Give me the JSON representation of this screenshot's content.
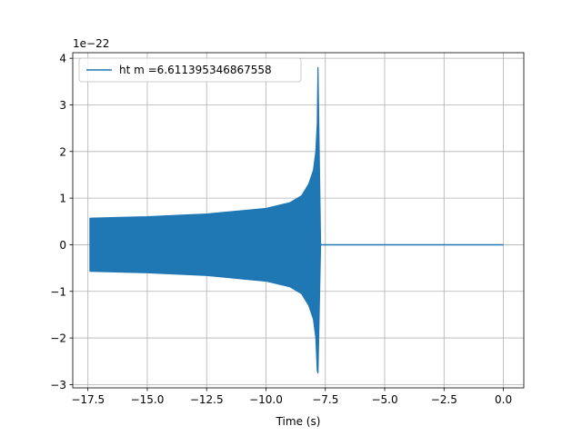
{
  "chart_data": {
    "type": "line",
    "xlabel": "Time (s)",
    "ylabel": "",
    "y_offset_text": "1e−22",
    "xlim": [
      -18.14,
      0.86
    ],
    "ylim": [
      -3.07,
      4.12
    ],
    "x_ticks": [
      -17.5,
      -15.0,
      -12.5,
      -10.0,
      -7.5,
      -5.0,
      -2.5,
      0.0
    ],
    "x_tick_labels": [
      "−17.5",
      "−15.0",
      "−12.5",
      "−10.0",
      "−7.5",
      "−5.0",
      "−2.5",
      "0.0"
    ],
    "y_ticks": [
      -3,
      -2,
      -1,
      0,
      1,
      2,
      3,
      4
    ],
    "y_tick_labels": [
      "−3",
      "−2",
      "−1",
      "0",
      "1",
      "2",
      "3",
      "4"
    ],
    "grid": true,
    "legend_position": "top-left",
    "series": [
      {
        "name": "ht m =6.611395346867558",
        "color": "#1f77b4",
        "envelope_upper": [
          [
            -17.41,
            0.57
          ],
          [
            -15.0,
            0.6
          ],
          [
            -12.5,
            0.66
          ],
          [
            -10.0,
            0.78
          ],
          [
            -9.0,
            0.9
          ],
          [
            -8.5,
            1.05
          ],
          [
            -8.2,
            1.3
          ],
          [
            -8.0,
            1.6
          ],
          [
            -7.9,
            2.0
          ],
          [
            -7.84,
            2.6
          ],
          [
            -7.81,
            3.8
          ]
        ],
        "envelope_lower": [
          [
            -17.41,
            -0.57
          ],
          [
            -15.0,
            -0.6
          ],
          [
            -12.5,
            -0.66
          ],
          [
            -10.0,
            -0.78
          ],
          [
            -9.0,
            -0.9
          ],
          [
            -8.5,
            -1.05
          ],
          [
            -8.2,
            -1.3
          ],
          [
            -8.0,
            -1.6
          ],
          [
            -7.9,
            -2.0
          ],
          [
            -7.84,
            -2.7
          ],
          [
            -7.81,
            -2.75
          ]
        ],
        "ringdown_end": -7.7,
        "tail": [
          [
            -7.7,
            0.0
          ],
          [
            0.0,
            0.0
          ]
        ]
      }
    ]
  }
}
